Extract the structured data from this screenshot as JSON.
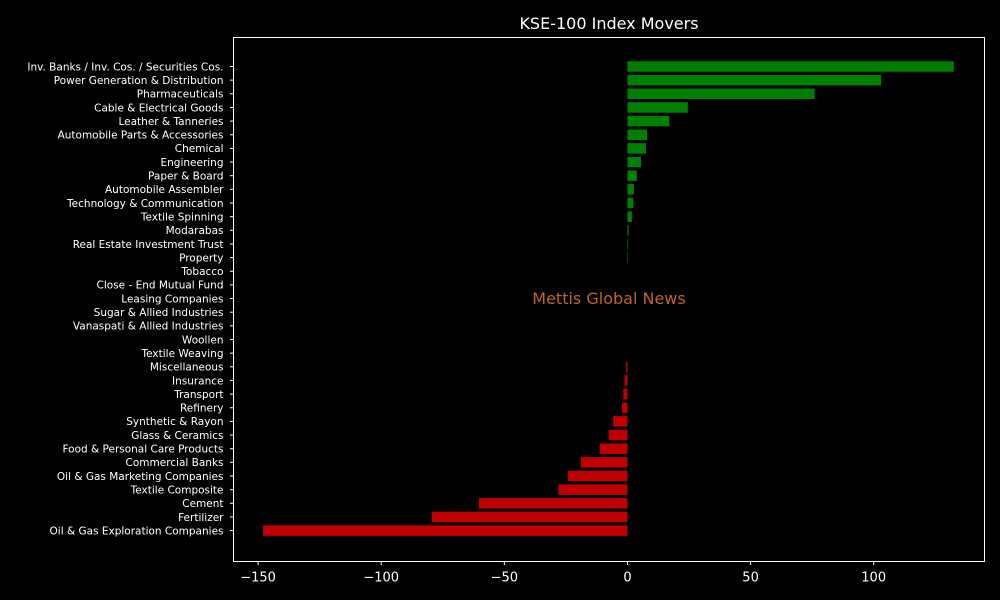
{
  "chart_data": {
    "type": "bar",
    "orientation": "horizontal",
    "title": "KSE-100 Index Movers",
    "watermark": "Mettis Global News",
    "xlabel": "",
    "ylabel": "",
    "xlim": [
      -160,
      145
    ],
    "xticks": [
      -150,
      -100,
      -50,
      0,
      50,
      100
    ],
    "xtick_labels": [
      "−150",
      "−100",
      "−50",
      "0",
      "50",
      "100"
    ],
    "grid": false,
    "colors": {
      "positive": "#008000",
      "negative": "#c00000",
      "background": "#000000",
      "text": "#ffffff",
      "watermark": "#c0641e"
    },
    "categories": [
      "Inv. Banks / Inv. Cos. / Securities Cos.",
      "Power Generation & Distribution",
      "Pharmaceuticals",
      "Cable & Electrical Goods",
      "Leather & Tanneries",
      "Automobile Parts & Accessories",
      "Chemical",
      "Engineering",
      "Paper & Board",
      "Automobile Assembler",
      "Technology & Communication",
      "Textile Spinning",
      "Modarabas",
      "Real Estate Investment Trust",
      "Property",
      "Tobacco",
      "Close - End Mutual Fund",
      "Leasing Companies",
      "Sugar & Allied Industries",
      "Vanaspati & Allied Industries",
      "Woollen",
      "Textile Weaving",
      "Miscellaneous",
      "Insurance",
      "Transport",
      "Refinery",
      "Synthetic & Rayon",
      "Glass & Ceramics",
      "Food & Personal Care Products",
      "Commercial Banks",
      "Oil & Gas Marketing Companies",
      "Textile Composite",
      "Cement",
      "Fertilizer",
      "Oil & Gas Exploration Companies"
    ],
    "values": [
      132.5,
      103,
      76,
      24.5,
      17,
      8,
      7.5,
      5.5,
      3.8,
      2.6,
      2.4,
      1.8,
      0.5,
      0.3,
      0.2,
      0,
      0,
      0,
      0,
      0,
      0,
      0,
      -0.6,
      -1.2,
      -1.7,
      -2.2,
      -5.8,
      -7.6,
      -11.3,
      -18.9,
      -24.2,
      -28,
      -60.3,
      -79.5,
      -148
    ]
  }
}
